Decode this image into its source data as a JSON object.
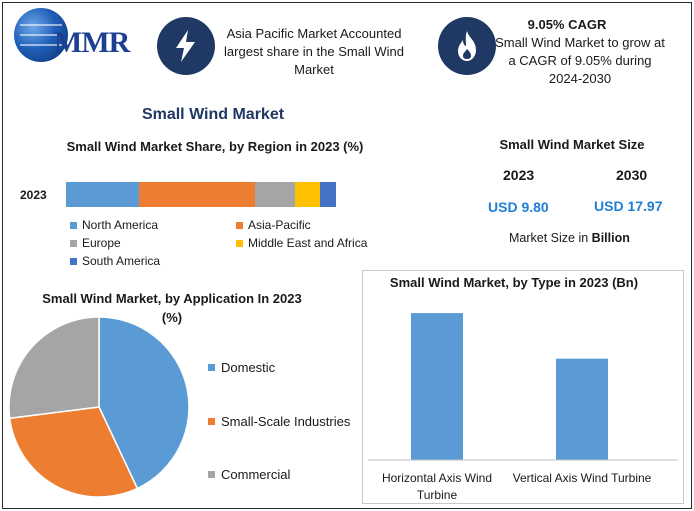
{
  "brand": {
    "logo_text": "MMR"
  },
  "highlights": [
    {
      "text": "Asia Pacific Market Accounted largest share in the Small Wind Market",
      "icon": "lightning-icon"
    },
    {
      "heading": "9.05% CAGR",
      "text": "Small Wind Market to grow at a CAGR of 9.05% during 2024-2030",
      "icon": "flame-icon"
    }
  ],
  "page_title": "Small Wind Market",
  "colors": {
    "blue": "#5b9bd5",
    "orange": "#ed7d31",
    "gray": "#a5a5a5",
    "yellow": "#ffc000",
    "navy": "#4472c4",
    "icon_bg": "#1f3864",
    "value_blue": "#1f7fd6"
  },
  "market_size": {
    "title": "Small Wind Market Size",
    "years": [
      "2023",
      "2030"
    ],
    "values": [
      "USD 9.80",
      "USD 17.97"
    ],
    "note_prefix": "Market Size in ",
    "note_unit": "Billion"
  },
  "chart_data": [
    {
      "type": "bar",
      "orientation": "horizontal-stacked",
      "title": "Small Wind Market Share, by Region in 2023 (%)",
      "categories": [
        "2023"
      ],
      "series": [
        {
          "name": "North America",
          "values": [
            27
          ]
        },
        {
          "name": "Asia-Pacific",
          "values": [
            43
          ]
        },
        {
          "name": "Europe",
          "values": [
            15
          ]
        },
        {
          "name": "Middle East and Africa",
          "values": [
            9
          ]
        },
        {
          "name": "South America",
          "values": [
            6
          ]
        }
      ],
      "xlim": [
        0,
        100
      ],
      "legend": "bottom",
      "grid": false
    },
    {
      "type": "pie",
      "title": "Small Wind Market, by Application In 2023 (%)",
      "labels": [
        "Domestic",
        "Small-Scale Industries",
        "Commercial"
      ],
      "values": [
        43,
        30,
        27
      ],
      "legend": "right"
    },
    {
      "type": "bar",
      "title": "Small Wind Market, by Type in 2023 (Bn)",
      "categories": [
        "Horizontal Axis Wind Turbine",
        "Vertical Axis Wind Turbine"
      ],
      "values": [
        5.8,
        4.0
      ],
      "ylim": [
        0,
        6
      ],
      "grid": false
    }
  ]
}
